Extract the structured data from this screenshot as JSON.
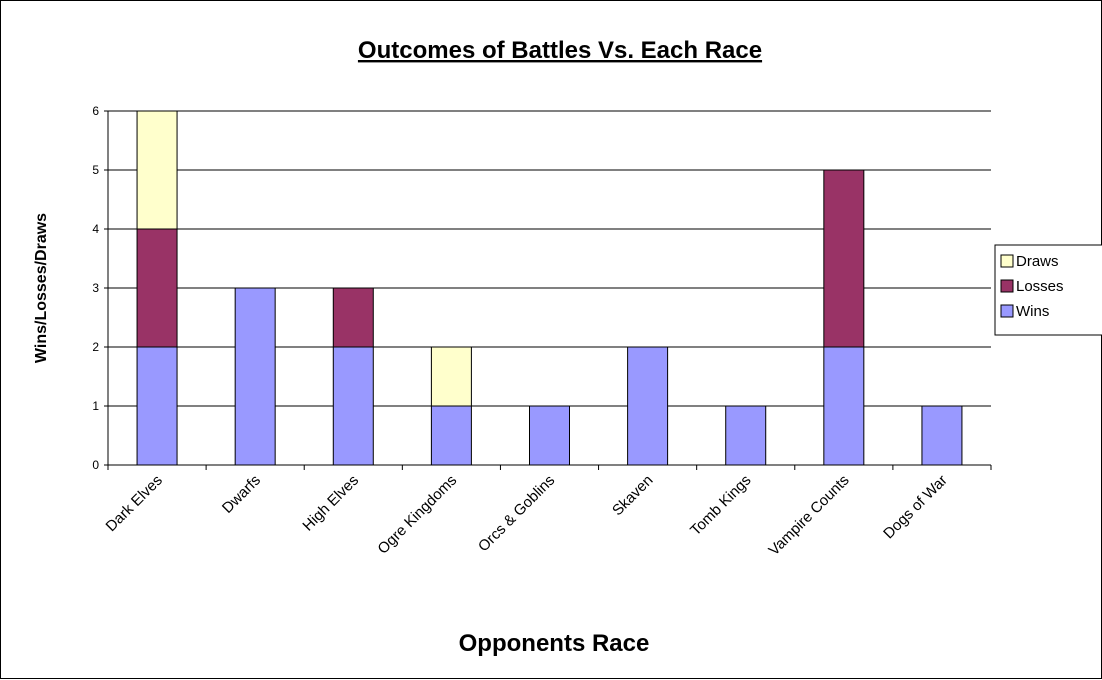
{
  "chart_data": {
    "type": "bar",
    "stacked": true,
    "title": "Outcomes of Battles Vs. Each Race",
    "xlabel": "Opponents Race",
    "ylabel": "Wins/Losses/Draws",
    "ylim": [
      0,
      6
    ],
    "yticks": [
      "0",
      "1",
      "2",
      "3",
      "4",
      "5",
      "6"
    ],
    "grid": true,
    "legend_position": "right",
    "categories": [
      "Dark Elves",
      "Dwarfs",
      "High Elves",
      "Ogre Kingdoms",
      "Orcs & Goblins",
      "Skaven",
      "Tomb Kings",
      "Vampire Counts",
      "Dogs of War"
    ],
    "series": [
      {
        "name": "Wins",
        "color": "#9999ff",
        "values": [
          2,
          3,
          2,
          1,
          1,
          2,
          1,
          2,
          1
        ]
      },
      {
        "name": "Losses",
        "color": "#993366",
        "values": [
          2,
          0,
          1,
          0,
          0,
          0,
          0,
          3,
          0
        ]
      },
      {
        "name": "Draws",
        "color": "#ffffcc",
        "values": [
          2,
          0,
          0,
          1,
          0,
          0,
          0,
          0,
          0
        ]
      }
    ],
    "legend_order": [
      "Draws",
      "Losses",
      "Wins"
    ]
  }
}
